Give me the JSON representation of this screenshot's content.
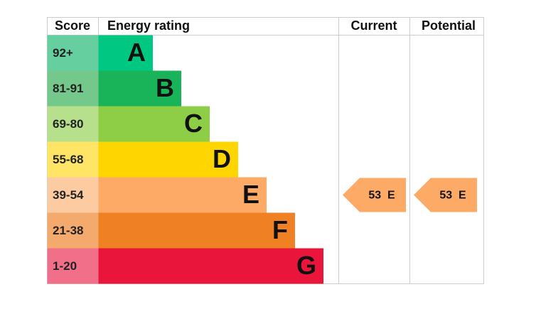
{
  "header": {
    "score": "Score",
    "rating": "Energy rating",
    "current": "Current",
    "potential": "Potential"
  },
  "bands": [
    {
      "score": "92+",
      "letter": "A",
      "color": "#00c781",
      "score_color": "#66cfa0"
    },
    {
      "score": "81-91",
      "letter": "B",
      "color": "#19b459",
      "score_color": "#75c88b"
    },
    {
      "score": "69-80",
      "letter": "C",
      "color": "#8dce46",
      "score_color": "#b6e08c"
    },
    {
      "score": "55-68",
      "letter": "D",
      "color": "#ffd500",
      "score_color": "#ffe466"
    },
    {
      "score": "39-54",
      "letter": "E",
      "color": "#fcaa65",
      "score_color": "#fdcba2"
    },
    {
      "score": "21-38",
      "letter": "F",
      "color": "#ef8023",
      "score_color": "#f4a96d"
    },
    {
      "score": "1-20",
      "letter": "G",
      "color": "#e9153b",
      "score_color": "#f16f88"
    }
  ],
  "current": {
    "value": 53,
    "letter": "E"
  },
  "potential": {
    "value": 53,
    "letter": "E"
  }
}
